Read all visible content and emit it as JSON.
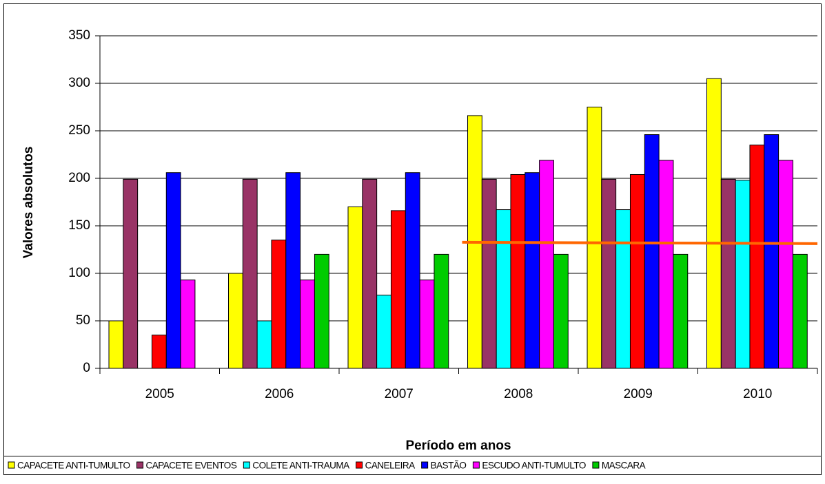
{
  "chart_data": {
    "type": "bar",
    "x_label": "Período em anos",
    "y_label": "Valores absolutos",
    "categories": [
      "2005",
      "2006",
      "2007",
      "2008",
      "2009",
      "2010"
    ],
    "series": [
      {
        "name": "CAPACETE ANTI-TUMULTO",
        "color": "#ffff00",
        "values": [
          50,
          100,
          170,
          266,
          275,
          305
        ]
      },
      {
        "name": "CAPACETE EVENTOS",
        "color": "#993366",
        "values": [
          199,
          199,
          199,
          199,
          199,
          199
        ]
      },
      {
        "name": "COLETE ANTI-TRAUMA",
        "color": "#00ffff",
        "values": [
          0,
          50,
          77,
          167,
          167,
          198
        ]
      },
      {
        "name": "CANELEIRA",
        "color": "#ff0000",
        "values": [
          35,
          135,
          166,
          204,
          204,
          235
        ]
      },
      {
        "name": "BASTÃO",
        "color": "#0000ff",
        "values": [
          206,
          206,
          206,
          206,
          246,
          246
        ]
      },
      {
        "name": "ESCUDO ANTI-TUMULTO",
        "color": "#ff00ff",
        "values": [
          93,
          93,
          93,
          219,
          219,
          219
        ]
      },
      {
        "name": "MASCARA",
        "color": "#00cc00",
        "values": [
          0,
          120,
          120,
          120,
          120,
          120
        ]
      }
    ],
    "reference_line": {
      "value": 132,
      "color": "#ff6600"
    },
    "ylim": [
      0,
      350
    ],
    "yticks": [
      0,
      50,
      100,
      150,
      200,
      250,
      300,
      350
    ],
    "grid": true,
    "legend": "bottom"
  }
}
